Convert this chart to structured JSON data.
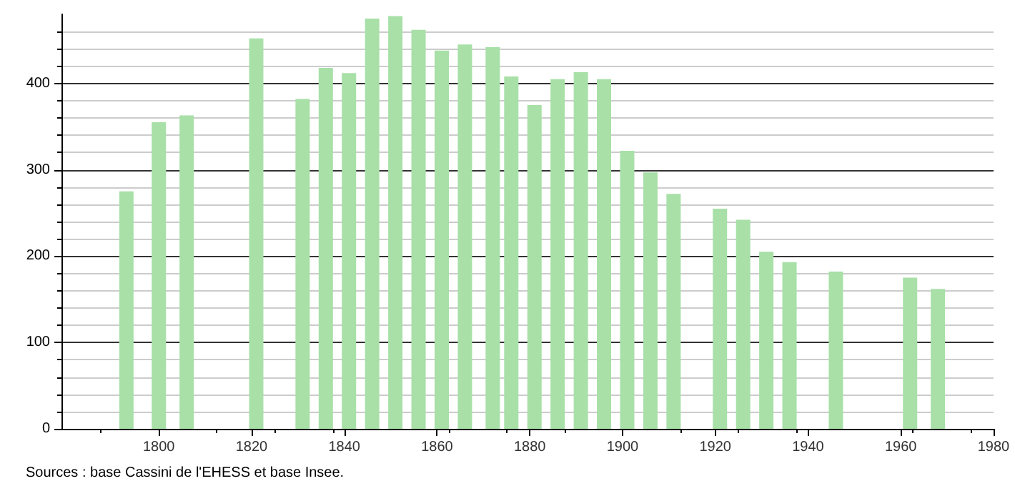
{
  "chart_data": {
    "type": "bar",
    "x": [
      1793,
      1800,
      1806,
      1821,
      1831,
      1836,
      1841,
      1846,
      1851,
      1856,
      1861,
      1866,
      1872,
      1876,
      1881,
      1886,
      1891,
      1896,
      1901,
      1906,
      1911,
      1921,
      1926,
      1931,
      1936,
      1946,
      1962,
      1968
    ],
    "values": [
      275,
      355,
      363,
      452,
      382,
      418,
      412,
      475,
      478,
      462,
      438,
      445,
      442,
      408,
      375,
      405,
      413,
      405,
      322,
      297,
      272,
      255,
      242,
      205,
      193,
      182,
      175,
      162
    ],
    "color": "#a8e0a8",
    "xlim": [
      1779,
      1980
    ],
    "xticks": [
      1800,
      1820,
      1840,
      1860,
      1880,
      1900,
      1920,
      1940,
      1960,
      1980
    ],
    "ylim": [
      0,
      480
    ],
    "yticks": [
      0,
      100,
      200,
      300,
      400
    ],
    "grid": "y",
    "annotations": [
      "Sources : base Cassini de l'EHESS et base Insee."
    ]
  }
}
